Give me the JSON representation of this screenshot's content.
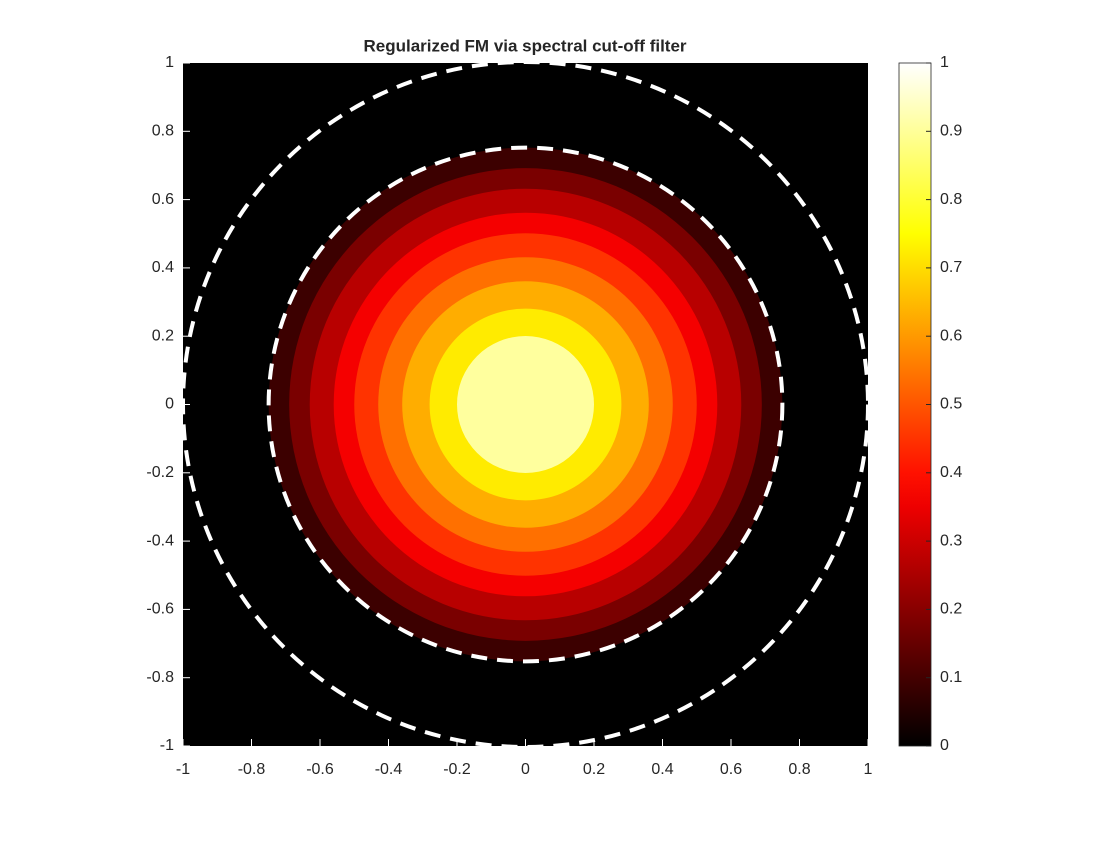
{
  "chart_data": {
    "type": "contourf",
    "title": "Regularized FM via spectral cut-off filter",
    "xlim": [
      -1,
      1
    ],
    "ylim": [
      -1,
      1
    ],
    "xticks": [
      -1,
      -0.8,
      -0.6,
      -0.4,
      -0.2,
      0,
      0.2,
      0.4,
      0.6,
      0.8,
      1
    ],
    "yticks": [
      -1,
      -0.8,
      -0.6,
      -0.4,
      -0.2,
      0,
      0.2,
      0.4,
      0.6,
      0.8,
      1
    ],
    "background": "#000000",
    "rings": [
      {
        "radius": 0.75,
        "color": "#3c0000"
      },
      {
        "radius": 0.69,
        "color": "#7a0000"
      },
      {
        "radius": 0.63,
        "color": "#b80000"
      },
      {
        "radius": 0.56,
        "color": "#f50000"
      },
      {
        "radius": 0.5,
        "color": "#ff3300"
      },
      {
        "radius": 0.43,
        "color": "#ff7000"
      },
      {
        "radius": 0.36,
        "color": "#ffad00"
      },
      {
        "radius": 0.28,
        "color": "#ffeb00"
      },
      {
        "radius": 0.2,
        "color": "#ffff9e"
      }
    ],
    "dashed_circles": [
      {
        "radius": 0.75,
        "color": "#ffffff"
      },
      {
        "radius": 1.0,
        "color": "#ffffff"
      }
    ],
    "colorbar": {
      "clim": [
        0,
        1
      ],
      "ticks": [
        0,
        0.1,
        0.2,
        0.3,
        0.4,
        0.5,
        0.6,
        0.7,
        0.8,
        0.9,
        1
      ],
      "colormap": "hot"
    }
  }
}
